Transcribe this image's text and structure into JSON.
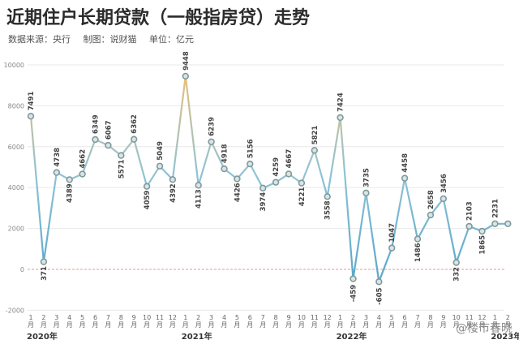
{
  "header": {
    "title": "近期住户长期贷款（一般指房贷）走势",
    "source": "数据来源：央行",
    "maker": "制图：说财猫",
    "unit": "单位：亿元"
  },
  "watermark": "@楼市春晓",
  "chart_data": {
    "type": "line",
    "title": "近期住户长期贷款（一般指房贷）走势",
    "xlabel": "",
    "ylabel": "",
    "ylim": [
      -2000,
      10000
    ],
    "yticks": [
      -2000,
      0,
      2000,
      4000,
      6000,
      8000,
      10000
    ],
    "grid": true,
    "legend": "none",
    "categories": [
      "1月",
      "2月",
      "3月",
      "4月",
      "5月",
      "6月",
      "7月",
      "8月",
      "9月",
      "10月",
      "11月",
      "12月",
      "1月",
      "2月",
      "3月",
      "4月",
      "5月",
      "6月",
      "7月",
      "8月",
      "9月",
      "10月",
      "11月",
      "12月",
      "1月",
      "2月",
      "3月",
      "4月",
      "5月",
      "6月",
      "7月",
      "8月",
      "9月",
      "10月",
      "11月",
      "12月",
      "1月",
      "2月"
    ],
    "x_labels": [
      "1\n月",
      "2\n月",
      "3\n月",
      "4\n月",
      "5\n月",
      "6\n月",
      "7\n月",
      "8\n月",
      "9\n月",
      "10\n月",
      "11\n月",
      "12\n月",
      "1\n月",
      "2\n月",
      "3\n月",
      "4\n月",
      "5\n月",
      "6\n月",
      "7\n月",
      "8\n月",
      "9\n月",
      "10\n月",
      "11\n月",
      "12\n月",
      "1\n月",
      "2\n月",
      "3\n月",
      "4\n月",
      "5\n月",
      "6\n月",
      "7\n月",
      "8\n月",
      "9\n月",
      "10\n月",
      "11\n月",
      "12\n月",
      "1\n月",
      "2\n月"
    ],
    "year_labels": [
      {
        "label": "2020年",
        "index": 0
      },
      {
        "label": "2021年",
        "index": 12
      },
      {
        "label": "2022年",
        "index": 24
      },
      {
        "label": "2023年",
        "index": 36
      }
    ],
    "series": [
      {
        "values": [
          7491,
          371,
          4738,
          4389,
          4662,
          6349,
          6067,
          5571,
          6362,
          4059,
          5049,
          4392,
          9448,
          4113,
          6239,
          4918,
          4426,
          5156,
          3974,
          4259,
          4667,
          4221,
          5821,
          3558,
          7424,
          -459,
          3735,
          -605,
          1047,
          4458,
          1486,
          2658,
          3456,
          332,
          2103,
          1865,
          2231,
          2231
        ],
        "labels": [
          "7491",
          "371",
          "4738",
          "4389",
          "4662",
          "6349",
          "6067",
          "5571",
          "6362",
          "4059",
          "5049",
          "4392",
          "9448",
          "4113",
          "6239",
          "4918",
          "4426",
          "5156",
          "3974",
          "4259",
          "4667",
          "4221",
          "5821",
          "3558",
          "7424",
          "-459",
          "3735",
          "-605",
          "1047",
          "4458",
          "1486",
          "2658",
          "3456",
          "332",
          "2103",
          "1865",
          "2231",
          ""
        ]
      }
    ],
    "colors": {
      "line_low": "#4a9fc6",
      "line_high": "#f0c070",
      "marker_fill": "#dde3e4",
      "marker_stroke": "#7d9a9c",
      "zero_line": "#e89a9a",
      "grid": "#e8e8e8"
    }
  }
}
